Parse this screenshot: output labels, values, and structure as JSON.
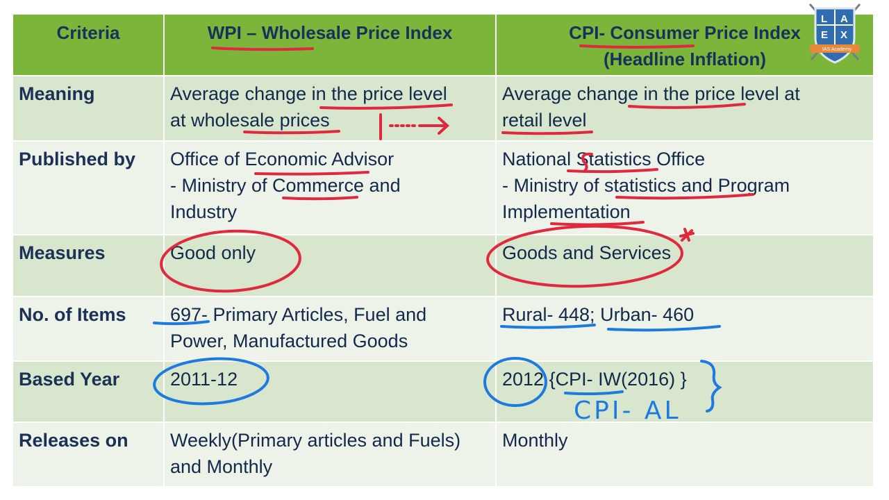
{
  "headers": {
    "criteria": "Criteria",
    "wpi": "WPI – Wholesale Price Index",
    "cpi_line1": "CPI- Consumer Price Index",
    "cpi_line2": "(Headline Inflation)"
  },
  "rows": [
    {
      "criteria": "Meaning",
      "wpi": [
        "Average change in the price level",
        "at wholesale prices"
      ],
      "cpi": [
        "Average change in the price level at",
        "retail level"
      ]
    },
    {
      "criteria": "Published by",
      "wpi": [
        "Office of Economic Advisor",
        "- Ministry of Commerce and",
        "Industry"
      ],
      "cpi": [
        "National Statistics Office",
        "- Ministry of statistics and Program",
        "Implementation"
      ]
    },
    {
      "criteria": "Measures",
      "wpi": [
        "Good only"
      ],
      "cpi": [
        "Goods and Services"
      ]
    },
    {
      "criteria": "No. of Items",
      "wpi": [
        "697- Primary Articles, Fuel and",
        "Power, Manufactured Goods"
      ],
      "cpi": [
        "Rural- 448; Urban- 460"
      ]
    },
    {
      "criteria": "Based Year",
      "wpi": [
        "2011-12"
      ],
      "cpi": [
        "2012 {CPI- IW(2016) }"
      ]
    },
    {
      "criteria": "Releases on",
      "wpi": [
        "Weekly(Primary articles and Fuels)",
        "and Monthly"
      ],
      "cpi": [
        "Monthly"
      ]
    }
  ],
  "annotations": {
    "handwritten_cpi_al": "CPI- AL",
    "asterisk": "*"
  },
  "logo": {
    "letters": [
      "L",
      "A",
      "E",
      "X"
    ],
    "tagline": "IAS Academy"
  },
  "colors": {
    "header_bg": "#7bb53a",
    "row_dark": "#d7e6cd",
    "row_light": "#edf3e8",
    "text": "#13294b",
    "ink_red": "#e0293f",
    "ink_blue": "#1f7ae0"
  }
}
